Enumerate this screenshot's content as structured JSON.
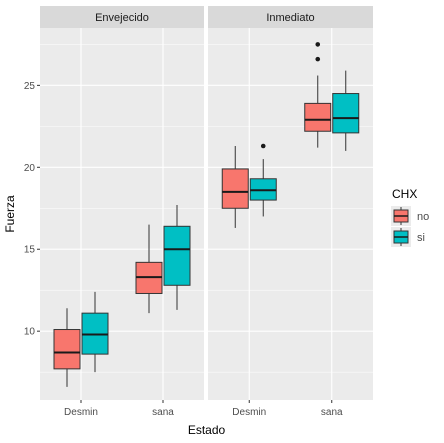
{
  "chart_data": {
    "type": "boxplot",
    "facets": [
      "Envejecido",
      "Inmediato"
    ],
    "categories": [
      "Desmin",
      "sana"
    ],
    "xlabel": "Estado",
    "ylabel": "Fuerza",
    "ylim": [
      5.8,
      28.5
    ],
    "yticks": [
      10,
      15,
      20,
      25
    ],
    "legend": {
      "title": "CHX",
      "placement": "right",
      "entries": [
        {
          "label": "no",
          "color": "#F8766D"
        },
        {
          "label": "si",
          "color": "#00BFC4"
        }
      ]
    },
    "colors": {
      "panel_bg": "#EBEBEB",
      "strip_bg": "#D9D9D9",
      "grid": "#FFFFFF",
      "text": "#4D4D4D",
      "title_text": "#000000"
    },
    "boxes": [
      {
        "facet": "Envejecido",
        "category": "Desmin",
        "group": "no",
        "min": 6.6,
        "q1": 7.7,
        "median": 8.7,
        "q3": 10.1,
        "max": 11.4,
        "outliers": []
      },
      {
        "facet": "Envejecido",
        "category": "Desmin",
        "group": "si",
        "min": 7.5,
        "q1": 8.6,
        "median": 9.8,
        "q3": 11.1,
        "max": 12.4,
        "outliers": []
      },
      {
        "facet": "Envejecido",
        "category": "sana",
        "group": "no",
        "min": 11.1,
        "q1": 12.3,
        "median": 13.3,
        "q3": 14.2,
        "max": 16.5,
        "outliers": []
      },
      {
        "facet": "Envejecido",
        "category": "sana",
        "group": "si",
        "min": 11.3,
        "q1": 12.8,
        "median": 15.0,
        "q3": 16.4,
        "max": 17.7,
        "outliers": []
      },
      {
        "facet": "Inmediato",
        "category": "Desmin",
        "group": "no",
        "min": 16.3,
        "q1": 17.5,
        "median": 18.5,
        "q3": 19.9,
        "max": 21.3,
        "outliers": []
      },
      {
        "facet": "Inmediato",
        "category": "Desmin",
        "group": "si",
        "min": 17.0,
        "q1": 18.0,
        "median": 18.6,
        "q3": 19.3,
        "max": 20.5,
        "outliers": [
          21.3
        ]
      },
      {
        "facet": "Inmediato",
        "category": "sana",
        "group": "no",
        "min": 21.2,
        "q1": 22.2,
        "median": 22.9,
        "q3": 23.9,
        "max": 25.6,
        "outliers": [
          26.6,
          27.5
        ]
      },
      {
        "facet": "Inmediato",
        "category": "sana",
        "group": "si",
        "min": 21.0,
        "q1": 22.1,
        "median": 23.0,
        "q3": 24.5,
        "max": 25.9,
        "outliers": []
      }
    ]
  }
}
